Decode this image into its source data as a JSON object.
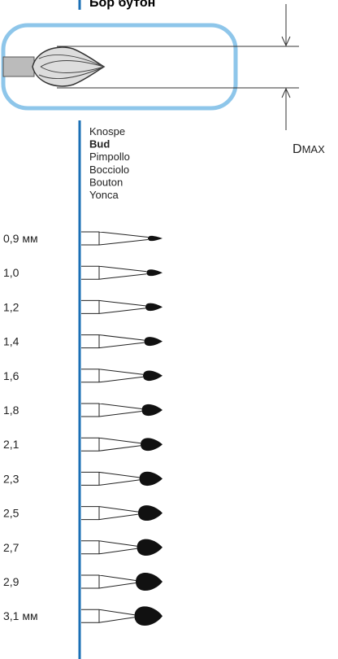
{
  "header": {
    "title": "Бор бутон"
  },
  "dimension_label": {
    "main": "D",
    "sub": "MAX"
  },
  "names": [
    "Knospe",
    "Bud",
    "Pimpollo",
    "Bocciolo",
    "Bouton",
    "Yonca"
  ],
  "sizes": [
    "0,9 мм",
    "1,0",
    "1,2",
    "1,4",
    "1,6",
    "1,8",
    "2,1",
    "2,3",
    "2,5",
    "2,7",
    "2,9",
    "3,1 мм"
  ]
}
